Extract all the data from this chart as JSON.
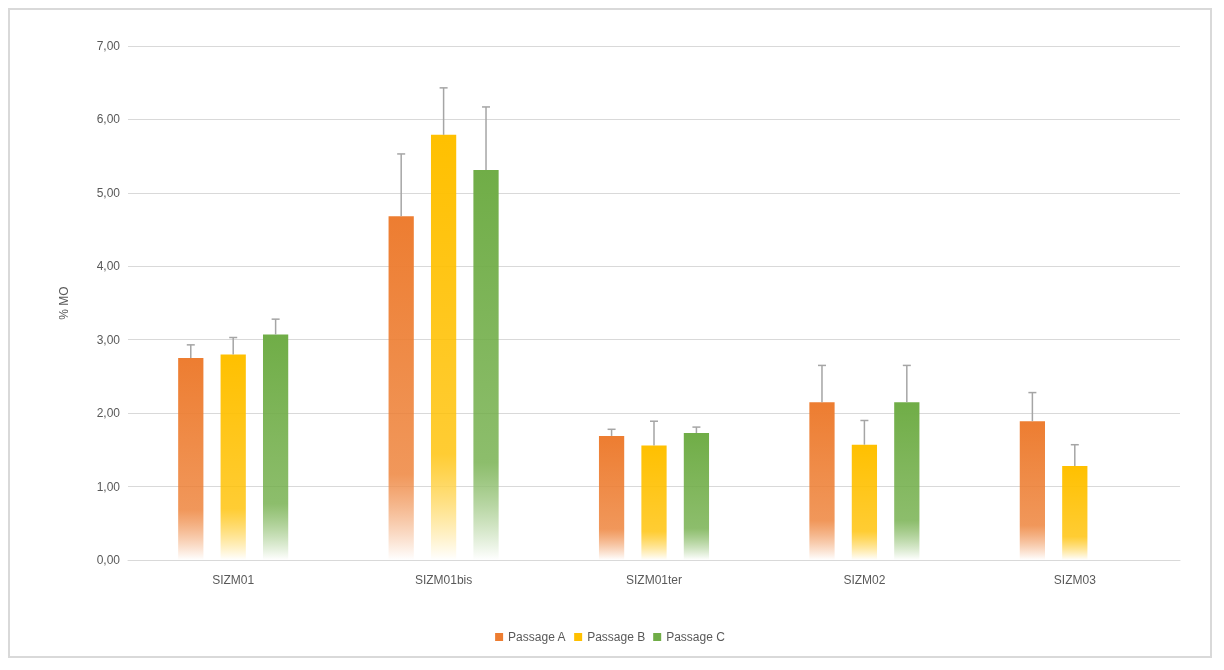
{
  "chart_data": {
    "type": "bar",
    "categories": [
      "SIZM01",
      "SIZM01bis",
      "SIZM01ter",
      "SIZM02",
      "SIZM03"
    ],
    "series": [
      {
        "name": "Passage A",
        "color": "#ed7d31",
        "values": [
          2.75,
          4.68,
          1.69,
          2.15,
          1.89
        ],
        "errors": [
          [
            2.75,
            2.93
          ],
          [
            4.68,
            5.53
          ],
          [
            1.69,
            1.78
          ],
          [
            2.15,
            2.65
          ],
          [
            1.89,
            2.28
          ]
        ]
      },
      {
        "name": "Passage B",
        "color": "#ffc000",
        "values": [
          2.8,
          5.79,
          1.56,
          1.57,
          1.28
        ],
        "errors": [
          [
            2.8,
            3.03
          ],
          [
            5.79,
            6.43
          ],
          [
            1.56,
            1.89
          ],
          [
            1.57,
            1.9
          ],
          [
            1.28,
            1.57
          ]
        ]
      },
      {
        "name": "Passage C",
        "color": "#70ad47",
        "values": [
          3.07,
          5.31,
          1.73,
          2.15,
          null
        ],
        "errors": [
          [
            3.07,
            3.28
          ],
          [
            5.31,
            6.17
          ],
          [
            1.73,
            1.81
          ],
          [
            2.15,
            2.65
          ],
          null
        ]
      }
    ],
    "ylabel": "% MO",
    "ylim": [
      0,
      7
    ],
    "yticks": [
      {
        "value": 0,
        "label": "0,00"
      },
      {
        "value": 1,
        "label": "1,00"
      },
      {
        "value": 2,
        "label": "2,00"
      },
      {
        "value": 3,
        "label": "3,00"
      },
      {
        "value": 4,
        "label": "4,00"
      },
      {
        "value": 5,
        "label": "5,00"
      },
      {
        "value": 6,
        "label": "6,00"
      },
      {
        "value": 7,
        "label": "7,00"
      }
    ],
    "grid": "y",
    "legend": "bottom"
  }
}
